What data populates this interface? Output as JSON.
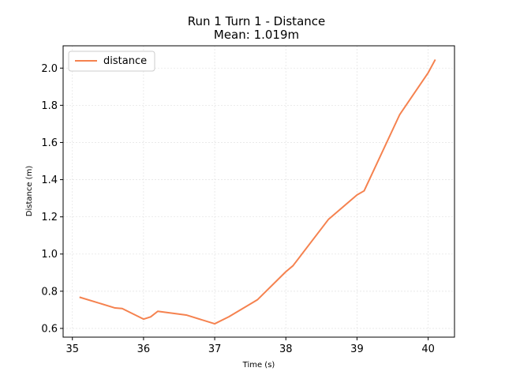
{
  "chart_data": {
    "type": "line",
    "title": "Run 1 Turn 1 - Distance",
    "subtitle": "Mean: 1.019m",
    "xlabel": "Time (s)",
    "ylabel": "Distance (m)",
    "xlim": [
      34.87,
      40.37
    ],
    "ylim": [
      0.553,
      2.12
    ],
    "xticks": [
      35,
      36,
      37,
      38,
      39,
      40
    ],
    "yticks": [
      0.6,
      0.8,
      1.0,
      1.2,
      1.4,
      1.6,
      1.8,
      2.0
    ],
    "xtick_labels": [
      "35",
      "36",
      "37",
      "38",
      "39",
      "40"
    ],
    "ytick_labels": [
      "0.6",
      "0.8",
      "1.0",
      "1.2",
      "1.4",
      "1.6",
      "1.8",
      "2.0"
    ],
    "grid": true,
    "legend_position": "top-left",
    "series": [
      {
        "name": "distance",
        "color": "#f5824f",
        "x": [
          35.1,
          35.6,
          35.7,
          36.0,
          36.1,
          36.2,
          36.6,
          37.0,
          37.2,
          37.6,
          38.0,
          38.1,
          38.6,
          39.0,
          39.1,
          39.6,
          40.0,
          40.1
        ],
        "y": [
          0.768,
          0.71,
          0.707,
          0.65,
          0.662,
          0.692,
          0.672,
          0.625,
          0.663,
          0.754,
          0.905,
          0.937,
          1.187,
          1.318,
          1.34,
          1.75,
          1.975,
          2.046
        ]
      }
    ]
  }
}
